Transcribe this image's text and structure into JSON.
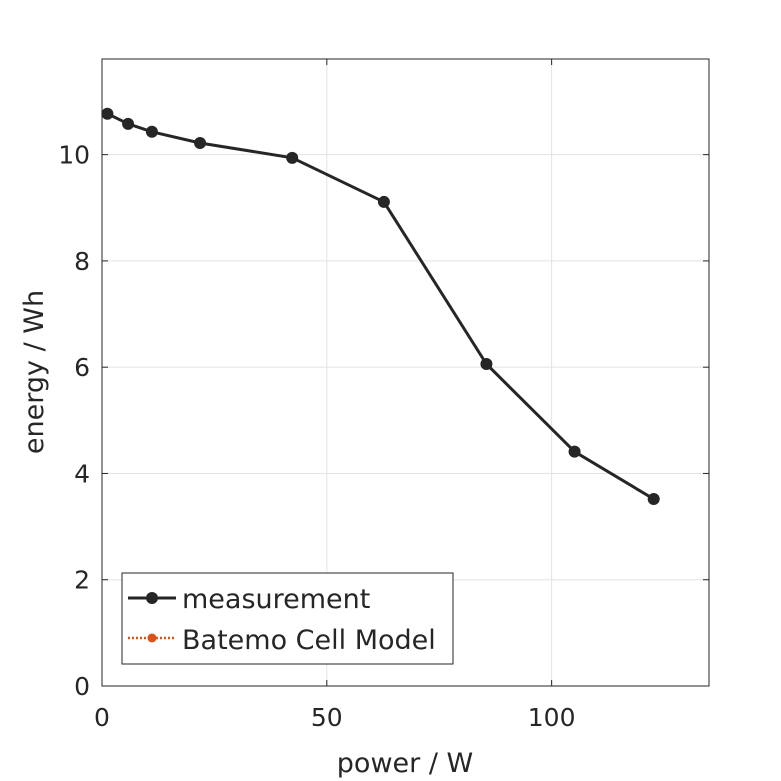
{
  "chart_data": {
    "type": "line",
    "title": "",
    "xlabel": "power / W",
    "ylabel": "energy / Wh",
    "xlim": [
      0,
      135
    ],
    "ylim": [
      0,
      11.8
    ],
    "xticks": [
      0,
      50,
      100
    ],
    "yticks": [
      0,
      2,
      4,
      6,
      8,
      10
    ],
    "xtick_labels": [
      "0",
      "50",
      "100"
    ],
    "ytick_labels": [
      "0",
      "2",
      "4",
      "6",
      "8",
      "10"
    ],
    "grid": true,
    "legend_position": "bottom-left",
    "series": [
      {
        "name": "measurement",
        "color": "#262626",
        "marker": "circle",
        "line_style": "solid",
        "x": [
          1.2,
          5.8,
          11.1,
          21.8,
          42.3,
          62.7,
          85.5,
          105.1,
          122.7
        ],
        "y": [
          10.77,
          10.58,
          10.43,
          10.22,
          9.94,
          9.11,
          6.06,
          4.41,
          3.52
        ]
      },
      {
        "name": "Batemo Cell Model",
        "color": "#D95319",
        "marker": "circle",
        "line_style": "dotted",
        "x": [],
        "y": []
      }
    ]
  }
}
